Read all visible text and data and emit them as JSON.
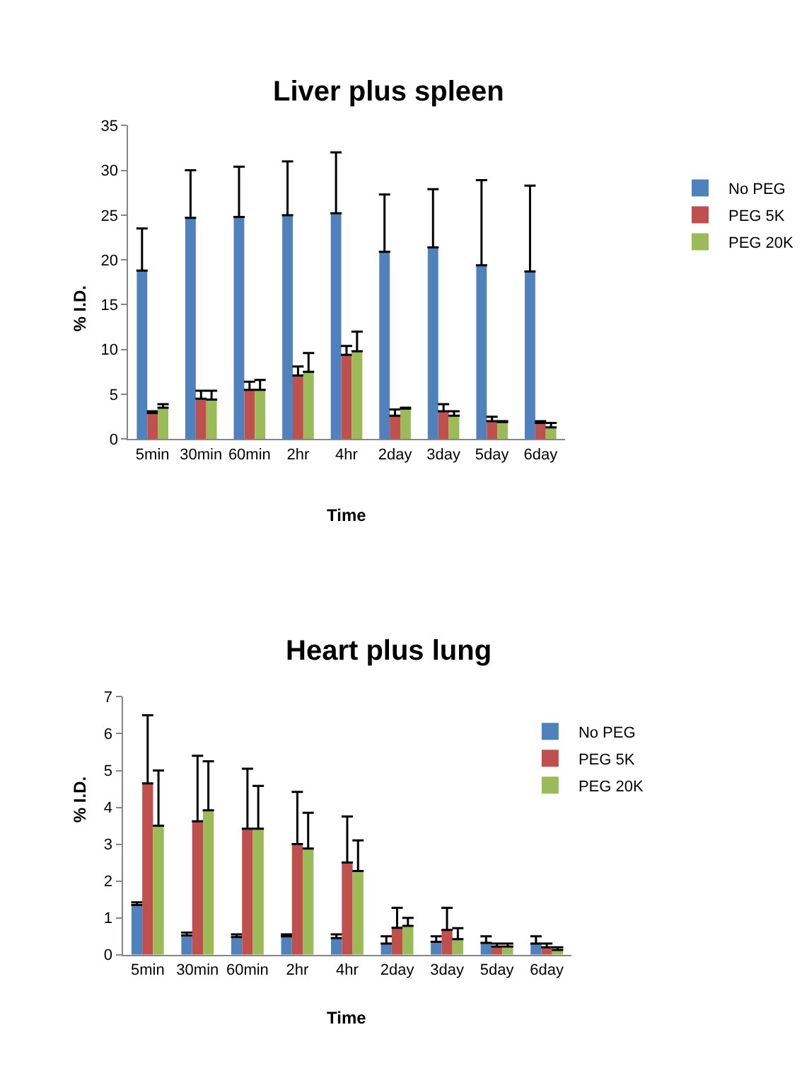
{
  "chart_data": [
    {
      "type": "bar",
      "title": "Liver plus spleen",
      "xlabel": "Time",
      "ylabel": "% I.D.",
      "categories": [
        "5min",
        "30min",
        "60min",
        "2hr",
        "4hr",
        "2day",
        "3day",
        "5day",
        "6day"
      ],
      "ylim": [
        0,
        35
      ],
      "yticks": [
        0,
        5,
        10,
        15,
        20,
        25,
        30,
        35
      ],
      "grid": false,
      "legend": "right",
      "series": [
        {
          "name": "No PEG",
          "color": "#4f81bd",
          "values": [
            18.8,
            24.7,
            24.8,
            25.0,
            25.2,
            20.9,
            21.4,
            19.4,
            18.7
          ],
          "errors": [
            [
              18.8,
              23.5
            ],
            [
              24.7,
              30.0
            ],
            [
              24.8,
              30.4
            ],
            [
              25.0,
              31.0
            ],
            [
              25.2,
              32.0
            ],
            [
              20.9,
              27.3
            ],
            [
              21.4,
              27.9
            ],
            [
              19.4,
              28.9
            ],
            [
              18.7,
              28.3
            ]
          ]
        },
        {
          "name": "PEG 5K",
          "color": "#c0504d",
          "values": [
            2.9,
            4.5,
            5.5,
            7.1,
            9.4,
            2.6,
            3.1,
            2.0,
            1.8
          ],
          "errors": [
            [
              2.9,
              3.1
            ],
            [
              4.5,
              5.4
            ],
            [
              5.5,
              6.4
            ],
            [
              7.1,
              8.1
            ],
            [
              9.4,
              10.4
            ],
            [
              2.6,
              3.3
            ],
            [
              3.1,
              3.9
            ],
            [
              2.0,
              2.5
            ],
            [
              1.8,
              2.0
            ]
          ]
        },
        {
          "name": "PEG 20K",
          "color": "#9bbb59",
          "values": [
            3.5,
            4.4,
            5.5,
            7.5,
            9.8,
            3.4,
            2.6,
            1.9,
            1.3
          ],
          "errors": [
            [
              3.5,
              3.9
            ],
            [
              4.4,
              5.4
            ],
            [
              5.5,
              6.6
            ],
            [
              7.5,
              9.6
            ],
            [
              9.8,
              12.0
            ],
            [
              3.4,
              3.5
            ],
            [
              2.6,
              3.1
            ],
            [
              1.9,
              2.0
            ],
            [
              1.3,
              1.8
            ]
          ]
        }
      ]
    },
    {
      "type": "bar",
      "title": "Heart plus lung",
      "xlabel": "Time",
      "ylabel": "% I.D.",
      "categories": [
        "5min",
        "30min",
        "60min",
        "2hr",
        "4hr",
        "2day",
        "3day",
        "5day",
        "6day"
      ],
      "ylim": [
        0,
        7
      ],
      "yticks": [
        0,
        1,
        2,
        3,
        4,
        5,
        6,
        7
      ],
      "grid": false,
      "legend": "top right",
      "series": [
        {
          "name": "No PEG",
          "color": "#4f81bd",
          "values": [
            1.35,
            0.52,
            0.48,
            0.5,
            0.45,
            0.3,
            0.35,
            0.32,
            0.3
          ],
          "errors": [
            [
              1.35,
              1.42
            ],
            [
              0.52,
              0.6
            ],
            [
              0.48,
              0.55
            ],
            [
              0.5,
              0.55
            ],
            [
              0.45,
              0.55
            ],
            [
              0.3,
              0.5
            ],
            [
              0.35,
              0.5
            ],
            [
              0.32,
              0.5
            ],
            [
              0.3,
              0.5
            ]
          ]
        },
        {
          "name": "PEG 5K",
          "color": "#c0504d",
          "values": [
            4.65,
            3.62,
            3.42,
            3.0,
            2.5,
            0.73,
            0.67,
            0.22,
            0.2
          ],
          "errors": [
            [
              4.65,
              6.5
            ],
            [
              3.62,
              5.4
            ],
            [
              3.42,
              5.05
            ],
            [
              3.0,
              4.42
            ],
            [
              2.5,
              3.75
            ],
            [
              0.73,
              1.27
            ],
            [
              0.67,
              1.27
            ],
            [
              0.22,
              0.3
            ],
            [
              0.2,
              0.3
            ]
          ]
        },
        {
          "name": "PEG 20K",
          "color": "#9bbb59",
          "values": [
            3.5,
            3.92,
            3.42,
            2.88,
            2.27,
            0.78,
            0.42,
            0.22,
            0.13
          ],
          "errors": [
            [
              3.5,
              5.0
            ],
            [
              3.92,
              5.25
            ],
            [
              3.42,
              4.58
            ],
            [
              2.88,
              3.85
            ],
            [
              2.27,
              3.1
            ],
            [
              0.78,
              1.0
            ],
            [
              0.42,
              0.72
            ],
            [
              0.22,
              0.3
            ],
            [
              0.13,
              0.2
            ]
          ]
        }
      ]
    }
  ]
}
